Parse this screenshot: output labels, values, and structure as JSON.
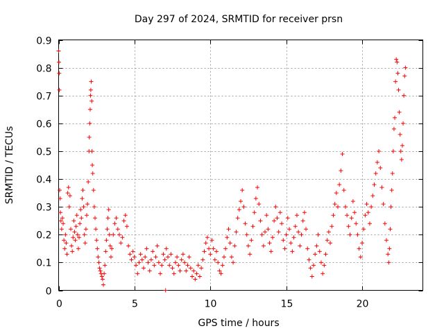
{
  "chart_data": {
    "type": "scatter",
    "title": "Day 297 of 2024, SRMTID for receiver prsn",
    "xlabel": "GPS time / hours",
    "ylabel": "SRMTID / TECUs",
    "xlim": [
      0,
      24
    ],
    "ylim": [
      0,
      0.9
    ],
    "xticks": [
      0,
      5,
      10,
      15,
      20
    ],
    "yticks": [
      0,
      0.1,
      0.2,
      0.3,
      0.4,
      0.5,
      0.6,
      0.7,
      0.8,
      0.9
    ],
    "xtick_labels": [
      "0",
      "5",
      "10",
      "15",
      "20"
    ],
    "ytick_labels": [
      "0",
      "0.1",
      "0.2",
      "0.3",
      "0.4",
      "0.5",
      "0.6",
      "0.7",
      "0.8",
      "0.9"
    ],
    "grid": true,
    "marker": "+",
    "color": "#ff0000",
    "series": [
      {
        "name": "SRMTID",
        "points": [
          [
            0.0,
            0.86
          ],
          [
            0.02,
            0.82
          ],
          [
            0.04,
            0.78
          ],
          [
            0.05,
            0.72
          ],
          [
            0.07,
            0.36
          ],
          [
            0.1,
            0.33
          ],
          [
            0.12,
            0.28
          ],
          [
            0.15,
            0.25
          ],
          [
            0.2,
            0.22
          ],
          [
            0.25,
            0.26
          ],
          [
            0.3,
            0.24
          ],
          [
            0.35,
            0.18
          ],
          [
            0.4,
            0.15
          ],
          [
            0.45,
            0.2
          ],
          [
            0.5,
            0.17
          ],
          [
            0.55,
            0.13
          ],
          [
            0.6,
            0.35
          ],
          [
            0.65,
            0.37
          ],
          [
            0.7,
            0.3
          ],
          [
            0.75,
            0.34
          ],
          [
            0.8,
            0.22
          ],
          [
            0.85,
            0.16
          ],
          [
            0.9,
            0.14
          ],
          [
            0.95,
            0.19
          ],
          [
            1.0,
            0.25
          ],
          [
            1.05,
            0.21
          ],
          [
            1.1,
            0.18
          ],
          [
            1.15,
            0.23
          ],
          [
            1.2,
            0.27
          ],
          [
            1.25,
            0.2
          ],
          [
            1.3,
            0.15
          ],
          [
            1.35,
            0.19
          ],
          [
            1.4,
            0.24
          ],
          [
            1.45,
            0.29
          ],
          [
            1.5,
            0.26
          ],
          [
            1.55,
            0.33
          ],
          [
            1.6,
            0.36
          ],
          [
            1.65,
            0.3
          ],
          [
            1.7,
            0.2
          ],
          [
            1.75,
            0.17
          ],
          [
            1.8,
            0.22
          ],
          [
            1.85,
            0.27
          ],
          [
            1.9,
            0.31
          ],
          [
            1.95,
            0.39
          ],
          [
            2.0,
            0.5
          ],
          [
            2.02,
            0.55
          ],
          [
            2.05,
            0.6
          ],
          [
            2.08,
            0.65
          ],
          [
            2.1,
            0.7
          ],
          [
            2.12,
            0.72
          ],
          [
            2.15,
            0.75
          ],
          [
            2.18,
            0.68
          ],
          [
            2.2,
            0.5
          ],
          [
            2.22,
            0.45
          ],
          [
            2.25,
            0.42
          ],
          [
            2.3,
            0.36
          ],
          [
            2.35,
            0.3
          ],
          [
            2.4,
            0.26
          ],
          [
            2.45,
            0.22
          ],
          [
            2.5,
            0.18
          ],
          [
            2.55,
            0.15
          ],
          [
            2.6,
            0.12
          ],
          [
            2.65,
            0.1
          ],
          [
            2.7,
            0.08
          ],
          [
            2.75,
            0.07
          ],
          [
            2.8,
            0.06
          ],
          [
            2.85,
            0.05
          ],
          [
            2.9,
            0.04
          ],
          [
            2.95,
            0.02
          ],
          [
            3.0,
            0.06
          ],
          [
            3.05,
            0.09
          ],
          [
            3.1,
            0.14
          ],
          [
            3.15,
            0.18
          ],
          [
            3.2,
            0.22
          ],
          [
            3.25,
            0.26
          ],
          [
            3.3,
            0.29
          ],
          [
            3.35,
            0.2
          ],
          [
            3.4,
            0.16
          ],
          [
            3.45,
            0.12
          ],
          [
            3.5,
            0.15
          ],
          [
            3.6,
            0.2
          ],
          [
            3.7,
            0.24
          ],
          [
            3.8,
            0.26
          ],
          [
            3.9,
            0.22
          ],
          [
            4.0,
            0.2
          ],
          [
            4.1,
            0.17
          ],
          [
            4.2,
            0.19
          ],
          [
            4.3,
            0.25
          ],
          [
            4.4,
            0.27
          ],
          [
            4.5,
            0.23
          ],
          [
            4.6,
            0.16
          ],
          [
            4.7,
            0.13
          ],
          [
            4.8,
            0.11
          ],
          [
            4.9,
            0.14
          ],
          [
            5.0,
            0.12
          ],
          [
            5.1,
            0.09
          ],
          [
            5.2,
            0.06
          ],
          [
            5.3,
            0.1
          ],
          [
            5.4,
            0.13
          ],
          [
            5.5,
            0.11
          ],
          [
            5.6,
            0.08
          ],
          [
            5.7,
            0.12
          ],
          [
            5.8,
            0.15
          ],
          [
            5.9,
            0.1
          ],
          [
            6.0,
            0.07
          ],
          [
            6.1,
            0.11
          ],
          [
            6.2,
            0.14
          ],
          [
            6.3,
            0.09
          ],
          [
            6.4,
            0.12
          ],
          [
            6.5,
            0.16
          ],
          [
            6.6,
            0.1
          ],
          [
            6.7,
            0.06
          ],
          [
            6.8,
            0.09
          ],
          [
            6.9,
            0.13
          ],
          [
            7.0,
            0.11
          ],
          [
            7.05,
            0.0
          ],
          [
            7.1,
            0.15
          ],
          [
            7.2,
            0.12
          ],
          [
            7.3,
            0.09
          ],
          [
            7.4,
            0.13
          ],
          [
            7.5,
            0.08
          ],
          [
            7.6,
            0.06
          ],
          [
            7.7,
            0.1
          ],
          [
            7.8,
            0.12
          ],
          [
            7.9,
            0.09
          ],
          [
            8.0,
            0.07
          ],
          [
            8.1,
            0.11
          ],
          [
            8.2,
            0.13
          ],
          [
            8.3,
            0.1
          ],
          [
            8.4,
            0.07
          ],
          [
            8.5,
            0.09
          ],
          [
            8.6,
            0.12
          ],
          [
            8.7,
            0.08
          ],
          [
            8.8,
            0.05
          ],
          [
            8.9,
            0.07
          ],
          [
            9.0,
            0.04
          ],
          [
            9.1,
            0.06
          ],
          [
            9.2,
            0.09
          ],
          [
            9.3,
            0.05
          ],
          [
            9.4,
            0.08
          ],
          [
            9.5,
            0.11
          ],
          [
            9.6,
            0.14
          ],
          [
            9.7,
            0.17
          ],
          [
            9.8,
            0.19
          ],
          [
            9.9,
            0.15
          ],
          [
            10.0,
            0.13
          ],
          [
            10.1,
            0.18
          ],
          [
            10.2,
            0.15
          ],
          [
            10.3,
            0.11
          ],
          [
            10.4,
            0.14
          ],
          [
            10.5,
            0.1
          ],
          [
            10.6,
            0.07
          ],
          [
            10.7,
            0.06
          ],
          [
            10.8,
            0.09
          ],
          [
            10.9,
            0.12
          ],
          [
            11.0,
            0.15
          ],
          [
            11.1,
            0.19
          ],
          [
            11.2,
            0.22
          ],
          [
            11.3,
            0.17
          ],
          [
            11.4,
            0.12
          ],
          [
            11.5,
            0.1
          ],
          [
            11.6,
            0.16
          ],
          [
            11.7,
            0.21
          ],
          [
            11.8,
            0.26
          ],
          [
            11.9,
            0.29
          ],
          [
            12.0,
            0.32
          ],
          [
            12.1,
            0.36
          ],
          [
            12.2,
            0.3
          ],
          [
            12.3,
            0.24
          ],
          [
            12.4,
            0.2
          ],
          [
            12.5,
            0.16
          ],
          [
            12.6,
            0.13
          ],
          [
            12.7,
            0.18
          ],
          [
            12.8,
            0.23
          ],
          [
            12.9,
            0.28
          ],
          [
            13.0,
            0.33
          ],
          [
            13.1,
            0.37
          ],
          [
            13.2,
            0.31
          ],
          [
            13.3,
            0.25
          ],
          [
            13.4,
            0.2
          ],
          [
            13.5,
            0.16
          ],
          [
            13.6,
            0.21
          ],
          [
            13.7,
            0.27
          ],
          [
            13.8,
            0.22
          ],
          [
            13.9,
            0.17
          ],
          [
            14.0,
            0.14
          ],
          [
            14.1,
            0.19
          ],
          [
            14.2,
            0.25
          ],
          [
            14.3,
            0.3
          ],
          [
            14.4,
            0.26
          ],
          [
            14.5,
            0.21
          ],
          [
            14.6,
            0.28
          ],
          [
            14.7,
            0.24
          ],
          [
            14.8,
            0.18
          ],
          [
            14.9,
            0.15
          ],
          [
            15.0,
            0.2
          ],
          [
            15.1,
            0.26
          ],
          [
            15.2,
            0.22
          ],
          [
            15.3,
            0.17
          ],
          [
            15.4,
            0.14
          ],
          [
            15.5,
            0.19
          ],
          [
            15.6,
            0.23
          ],
          [
            15.7,
            0.27
          ],
          [
            15.8,
            0.21
          ],
          [
            15.9,
            0.16
          ],
          [
            16.0,
            0.2
          ],
          [
            16.1,
            0.25
          ],
          [
            16.2,
            0.28
          ],
          [
            16.3,
            0.22
          ],
          [
            16.4,
            0.15
          ],
          [
            16.5,
            0.11
          ],
          [
            16.6,
            0.08
          ],
          [
            16.7,
            0.05
          ],
          [
            16.8,
            0.09
          ],
          [
            16.9,
            0.13
          ],
          [
            17.0,
            0.16
          ],
          [
            17.1,
            0.2
          ],
          [
            17.2,
            0.14
          ],
          [
            17.3,
            0.1
          ],
          [
            17.4,
            0.06
          ],
          [
            17.5,
            0.09
          ],
          [
            17.6,
            0.13
          ],
          [
            17.7,
            0.18
          ],
          [
            17.8,
            0.21
          ],
          [
            17.9,
            0.17
          ],
          [
            18.0,
            0.23
          ],
          [
            18.1,
            0.27
          ],
          [
            18.2,
            0.31
          ],
          [
            18.3,
            0.35
          ],
          [
            18.4,
            0.3
          ],
          [
            18.5,
            0.38
          ],
          [
            18.6,
            0.43
          ],
          [
            18.7,
            0.49
          ],
          [
            18.8,
            0.36
          ],
          [
            18.9,
            0.3
          ],
          [
            19.0,
            0.27
          ],
          [
            19.1,
            0.23
          ],
          [
            19.2,
            0.2
          ],
          [
            19.3,
            0.26
          ],
          [
            19.4,
            0.32
          ],
          [
            19.5,
            0.28
          ],
          [
            19.6,
            0.24
          ],
          [
            19.7,
            0.2
          ],
          [
            19.8,
            0.15
          ],
          [
            19.9,
            0.12
          ],
          [
            20.0,
            0.17
          ],
          [
            20.1,
            0.22
          ],
          [
            20.2,
            0.27
          ],
          [
            20.3,
            0.31
          ],
          [
            20.4,
            0.28
          ],
          [
            20.5,
            0.24
          ],
          [
            20.6,
            0.3
          ],
          [
            20.7,
            0.34
          ],
          [
            20.8,
            0.38
          ],
          [
            20.9,
            0.42
          ],
          [
            21.0,
            0.46
          ],
          [
            21.1,
            0.5
          ],
          [
            21.2,
            0.44
          ],
          [
            21.3,
            0.37
          ],
          [
            21.4,
            0.31
          ],
          [
            21.5,
            0.24
          ],
          [
            21.6,
            0.18
          ],
          [
            21.7,
            0.13
          ],
          [
            21.75,
            0.1
          ],
          [
            21.8,
            0.15
          ],
          [
            21.85,
            0.22
          ],
          [
            21.9,
            0.3
          ],
          [
            21.95,
            0.36
          ],
          [
            22.0,
            0.42
          ],
          [
            22.05,
            0.5
          ],
          [
            22.1,
            0.58
          ],
          [
            22.15,
            0.62
          ],
          [
            22.2,
            0.75
          ],
          [
            22.25,
            0.83
          ],
          [
            22.3,
            0.82
          ],
          [
            22.35,
            0.78
          ],
          [
            22.4,
            0.72
          ],
          [
            22.45,
            0.64
          ],
          [
            22.5,
            0.56
          ],
          [
            22.55,
            0.5
          ],
          [
            22.6,
            0.47
          ],
          [
            22.65,
            0.52
          ],
          [
            22.7,
            0.6
          ],
          [
            22.75,
            0.7
          ],
          [
            22.8,
            0.77
          ],
          [
            22.85,
            0.8
          ]
        ]
      }
    ]
  }
}
